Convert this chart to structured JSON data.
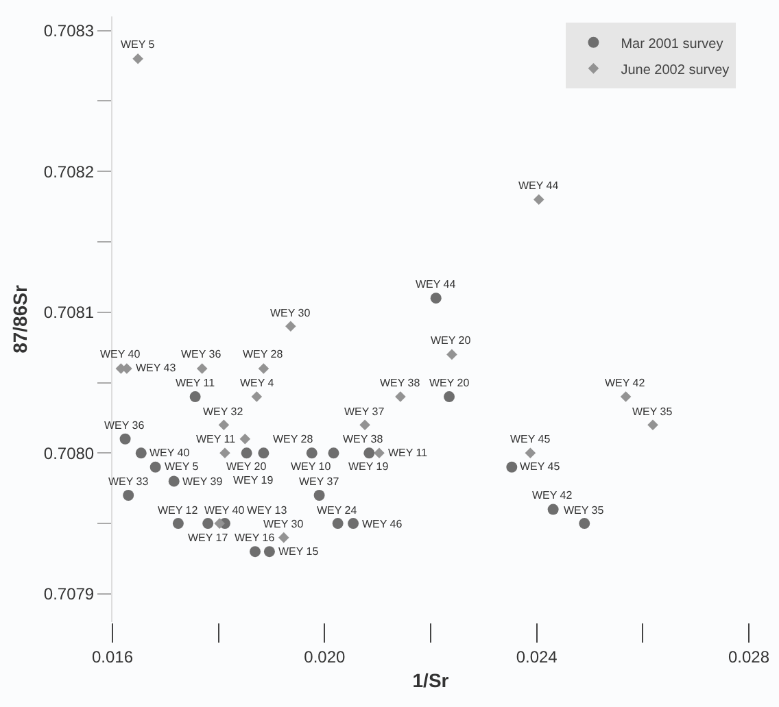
{
  "chart_data": {
    "type": "scatter",
    "xlabel": "1/Sr",
    "ylabel": "87/86Sr",
    "xlim": [
      0.016,
      0.028
    ],
    "ylim": [
      0.70788,
      0.70831
    ],
    "xticks": [
      {
        "value": 0.016,
        "label": "0.016"
      },
      {
        "value": 0.018,
        "label": null
      },
      {
        "value": 0.02,
        "label": "0.020"
      },
      {
        "value": 0.022,
        "label": null
      },
      {
        "value": 0.024,
        "label": "0.024"
      },
      {
        "value": 0.026,
        "label": null
      },
      {
        "value": 0.028,
        "label": "0.028"
      }
    ],
    "yticks": [
      {
        "value": 0.7079,
        "label": "0.7079"
      },
      {
        "value": 0.70795,
        "label": null
      },
      {
        "value": 0.708,
        "label": "0.7080"
      },
      {
        "value": 0.70805,
        "label": null
      },
      {
        "value": 0.7081,
        "label": "0.7081"
      },
      {
        "value": 0.70815,
        "label": null
      },
      {
        "value": 0.7082,
        "label": "0.7082"
      },
      {
        "value": 0.70825,
        "label": null
      },
      {
        "value": 0.7083,
        "label": "0.7083"
      }
    ],
    "grid": false,
    "legend": "top right",
    "series": [
      {
        "name": "Mar 2001 survey",
        "color": "#6e6e6e",
        "marker": "circle",
        "x": [
          0.0221,
          0.02235,
          0.02353,
          0.02431,
          0.0249,
          0.01756,
          0.01624,
          0.01654,
          0.01681,
          0.01716,
          0.0163,
          0.0199,
          0.01853,
          0.01885,
          0.01976,
          0.02017,
          0.02084,
          0.01724,
          0.0178,
          0.01812,
          0.02025,
          0.02054,
          0.01869,
          0.01896
        ],
        "values": [
          0.70811,
          0.70804,
          0.70799,
          0.70796,
          0.70795,
          0.70804,
          0.70801,
          0.708,
          0.70799,
          0.70798,
          0.70797,
          0.70797,
          0.708,
          0.708,
          0.708,
          0.708,
          0.708,
          0.70795,
          0.70795,
          0.70795,
          0.70795,
          0.70795,
          0.70793,
          0.70793
        ]
      },
      {
        "name": "June 2002 survey",
        "color": "#939393",
        "marker": "diamond",
        "x": [
          0.01648,
          0.01936,
          0.02404,
          0.0224,
          0.02143,
          0.02568,
          0.02619,
          0.02388,
          0.01616,
          0.01627,
          0.01769,
          0.01885,
          0.01872,
          0.0181,
          0.0185,
          0.01812,
          0.02103,
          0.02076,
          0.01802,
          0.01923
        ],
        "values": [
          0.70828,
          0.70809,
          0.70818,
          0.70807,
          0.70804,
          0.70804,
          0.70802,
          0.708,
          0.70806,
          0.70806,
          0.70806,
          0.70806,
          0.70804,
          0.70802,
          0.70801,
          0.708,
          0.708,
          0.70802,
          0.70795,
          0.70794
        ]
      }
    ],
    "annotations": [
      {
        "text": "WEY 44",
        "x": 0.0221,
        "y": 0.70811
      },
      {
        "text": "WEY 20",
        "x": 0.02235,
        "y": 0.70804
      },
      {
        "text": "WEY 45",
        "x": 0.02353,
        "y": 0.70799
      },
      {
        "text": "WEY 42",
        "x": 0.02431,
        "y": 0.70796
      },
      {
        "text": "WEY 35",
        "x": 0.0249,
        "y": 0.70795
      },
      {
        "text": "WEY 11",
        "x": 0.01756,
        "y": 0.70804
      },
      {
        "text": "WEY 36",
        "x": 0.01624,
        "y": 0.70801
      },
      {
        "text": "WEY 40",
        "x": 0.01654,
        "y": 0.708
      },
      {
        "text": "WEY 5",
        "x": 0.01681,
        "y": 0.70799
      },
      {
        "text": "WEY 39",
        "x": 0.01716,
        "y": 0.70798
      },
      {
        "text": "WEY 33",
        "x": 0.0163,
        "y": 0.70797
      },
      {
        "text": "WEY 37",
        "x": 0.0199,
        "y": 0.70797
      },
      {
        "text": "WEY 20",
        "x": 0.01853,
        "y": 0.708
      },
      {
        "text": "WEY 28",
        "x": 0.01885,
        "y": 0.708
      },
      {
        "text": "WEY 10",
        "x": 0.01976,
        "y": 0.708
      },
      {
        "text": "WEY 38",
        "x": 0.02017,
        "y": 0.708
      },
      {
        "text": "WEY 19",
        "x": 0.02084,
        "y": 0.708
      },
      {
        "text": "WEY 12",
        "x": 0.01724,
        "y": 0.70795
      },
      {
        "text": "WEY 17",
        "x": 0.0178,
        "y": 0.70795
      },
      {
        "text": "WEY 40",
        "x": 0.01812,
        "y": 0.70795
      },
      {
        "text": "WEY 24",
        "x": 0.02025,
        "y": 0.70795
      },
      {
        "text": "WEY 46",
        "x": 0.02054,
        "y": 0.70795
      },
      {
        "text": "WEY 16",
        "x": 0.01869,
        "y": 0.70793
      },
      {
        "text": "WEY 15",
        "x": 0.01896,
        "y": 0.70793
      },
      {
        "text": "WEY 5",
        "x": 0.01648,
        "y": 0.70828
      },
      {
        "text": "WEY 30",
        "x": 0.01936,
        "y": 0.70809
      },
      {
        "text": "WEY 44",
        "x": 0.02404,
        "y": 0.70818
      },
      {
        "text": "WEY 20",
        "x": 0.0224,
        "y": 0.70807
      },
      {
        "text": "WEY 38",
        "x": 0.02143,
        "y": 0.70804
      },
      {
        "text": "WEY 42",
        "x": 0.02568,
        "y": 0.70804
      },
      {
        "text": "WEY 35",
        "x": 0.02619,
        "y": 0.70802
      },
      {
        "text": "WEY 45",
        "x": 0.02388,
        "y": 0.708
      },
      {
        "text": "WEY 40",
        "x": 0.01616,
        "y": 0.70806
      },
      {
        "text": "WEY 43",
        "x": 0.01627,
        "y": 0.70806
      },
      {
        "text": "WEY 36",
        "x": 0.01769,
        "y": 0.70806
      },
      {
        "text": "WEY 28",
        "x": 0.01885,
        "y": 0.70806
      },
      {
        "text": "WEY 4",
        "x": 0.01872,
        "y": 0.70804
      },
      {
        "text": "WEY 32",
        "x": 0.0181,
        "y": 0.70802
      },
      {
        "text": "WEY 11",
        "x": 0.0185,
        "y": 0.70801
      },
      {
        "text": "WEY 19",
        "x": 0.01812,
        "y": 0.708
      },
      {
        "text": "WEY 11",
        "x": 0.02103,
        "y": 0.708
      },
      {
        "text": "WEY 37",
        "x": 0.02076,
        "y": 0.70802
      },
      {
        "text": "WEY 13",
        "x": 0.01802,
        "y": 0.70795
      },
      {
        "text": "WEY 30",
        "x": 0.01923,
        "y": 0.70794
      }
    ]
  }
}
